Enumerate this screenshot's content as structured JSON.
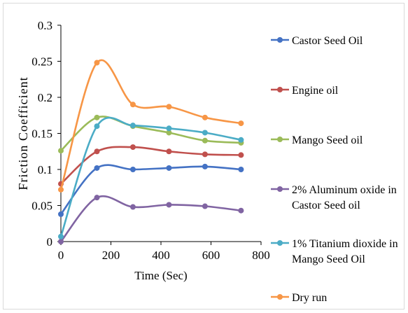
{
  "chart_data": {
    "type": "line",
    "title": "",
    "xlabel": "Time (Sec)",
    "ylabel": "Friction Coefficient",
    "xlim": [
      0,
      800
    ],
    "ylim": [
      0,
      0.3
    ],
    "x_ticks": [
      0,
      200,
      400,
      600,
      800
    ],
    "x_tick_labels": [
      "0",
      "200",
      "400",
      "600",
      "800"
    ],
    "y_ticks": [
      0,
      0.05,
      0.1,
      0.15,
      0.2,
      0.25,
      0.3
    ],
    "y_tick_labels": [
      "0",
      "0.05",
      "0.1",
      "0.15",
      "0.2",
      "0.25",
      "0.3"
    ],
    "grid": false,
    "smooth": true,
    "legend_position": "right",
    "x": [
      0,
      144,
      288,
      432,
      576,
      720
    ],
    "series": [
      {
        "name": "Castor Seed Oil",
        "legend_lines": [
          "Castor Seed Oil"
        ],
        "color": "#4472C4",
        "values": [
          0.038,
          0.102,
          0.1,
          0.102,
          0.104,
          0.1
        ]
      },
      {
        "name": "Engine oil",
        "legend_lines": [
          "Engine oil"
        ],
        "color": "#C0504D",
        "values": [
          0.08,
          0.125,
          0.131,
          0.125,
          0.121,
          0.12
        ]
      },
      {
        "name": "Mango Seed oil",
        "legend_lines": [
          "Mango Seed oil"
        ],
        "color": "#9BBB59",
        "values": [
          0.126,
          0.172,
          0.16,
          0.151,
          0.14,
          0.137
        ]
      },
      {
        "name": "2% Aluminum oxide in Castor Seed oil",
        "legend_lines": [
          "2% Aluminum oxide in",
          "Castor Seed oil"
        ],
        "color": "#8064A2",
        "values": [
          0.0,
          0.061,
          0.048,
          0.051,
          0.049,
          0.043
        ]
      },
      {
        "name": "1% Titanium dioxide in Mango Seed Oil",
        "legend_lines": [
          "1% Titanium dioxide in",
          "Mango Seed Oil"
        ],
        "color": "#4BACC6",
        "values": [
          0.007,
          0.16,
          0.161,
          0.157,
          0.151,
          0.141
        ]
      },
      {
        "name": "Dry run",
        "legend_lines": [
          "Dry run"
        ],
        "color": "#F79646",
        "values": [
          0.072,
          0.248,
          0.19,
          0.187,
          0.172,
          0.164
        ]
      }
    ]
  }
}
